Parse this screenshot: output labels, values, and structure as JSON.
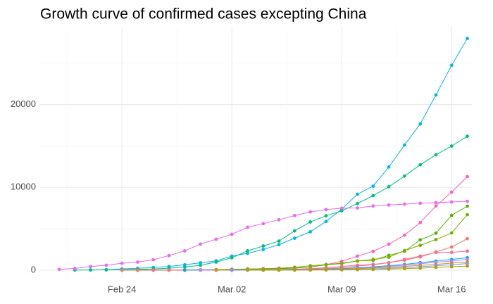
{
  "chart_data": {
    "type": "line",
    "title": "Growth curve of confirmed cases excepting China",
    "categories": [
      null,
      null,
      null,
      null,
      "Feb 24",
      null,
      null,
      null,
      null,
      null,
      null,
      "Mar 02",
      null,
      null,
      null,
      null,
      null,
      null,
      "Mar 09",
      null,
      null,
      null,
      null,
      null,
      null,
      "Mar 16",
      null
    ],
    "ylim": [
      -940,
      29400
    ],
    "yticks": [
      0,
      10000,
      20000
    ],
    "grid": true,
    "series": [
      {
        "color": "#00B8E7",
        "values": [
          null,
          null,
          20,
          62,
          155,
          229,
          322,
          453,
          655,
          888,
          1128,
          1694,
          2036,
          2502,
          3089,
          3858,
          4636,
          5883,
          7375,
          9172,
          10149,
          12462,
          15113,
          17660,
          21157,
          24747,
          27980
        ]
      },
      {
        "color": "#00BF7D",
        "values": [
          null,
          18,
          28,
          43,
          61,
          95,
          139,
          245,
          388,
          593,
          978,
          1501,
          2336,
          2922,
          3513,
          4747,
          5823,
          6566,
          7161,
          8042,
          9000,
          10075,
          11364,
          12729,
          13938,
          14991,
          16169
        ]
      },
      {
        "color": "#E76BF3",
        "values": [
          104,
          204,
          433,
          602,
          833,
          977,
          1261,
          1766,
          2337,
          3150,
          3736,
          4335,
          5186,
          5621,
          6088,
          6593,
          7041,
          7314,
          7478,
          7513,
          7755,
          7869,
          7979,
          8086,
          8162,
          8236,
          8320
        ]
      },
      {
        "color": "#FF62BC",
        "values": [
          null,
          null,
          null,
          null,
          1,
          2,
          6,
          13,
          15,
          32,
          45,
          84,
          120,
          165,
          222,
          259,
          400,
          673,
          1073,
          1695,
          2277,
          3146,
          4231,
          5753,
          7753,
          9428,
          11300
        ]
      },
      {
        "color": "#53B400",
        "values": [
          null,
          null,
          null,
          null,
          null,
          16,
          16,
          18,
          21,
          26,
          53,
          66,
          117,
          150,
          188,
          240,
          400,
          639,
          795,
          1112,
          1189,
          1784,
          2281,
          3661,
          4469,
          6633,
          7730
        ]
      },
      {
        "color": "#7CAE00",
        "values": [
          null,
          null,
          null,
          null,
          16,
          16,
          16,
          18,
          26,
          53,
          66,
          117,
          150,
          188,
          240,
          349,
          534,
          684,
          847,
          1112,
          1296,
          1567,
          2369,
          3000,
          3700,
          4500,
          6700
        ]
      },
      {
        "color": "#F8766D",
        "values": [
          null,
          null,
          null,
          null,
          2,
          3,
          5,
          8,
          10,
          15,
          20,
          30,
          45,
          60,
          80,
          100,
          150,
          200,
          300,
          500,
          650,
          900,
          1200,
          1600,
          2200,
          2800,
          3800
        ]
      },
      {
        "color": "#FF6C91",
        "values": [
          null,
          null,
          null,
          null,
          null,
          null,
          1,
          2,
          5,
          8,
          12,
          20,
          30,
          50,
          80,
          120,
          200,
          300,
          450,
          600,
          700,
          900,
          1300,
          1700,
          2150,
          2150,
          2300
        ]
      },
      {
        "color": "#00A9FF",
        "values": [
          null,
          null,
          null,
          null,
          null,
          null,
          null,
          null,
          4,
          6,
          10,
          15,
          20,
          30,
          45,
          60,
          90,
          130,
          200,
          300,
          400,
          550,
          700,
          900,
          1100,
          1300,
          1500
        ]
      },
      {
        "color": "#C77CFF",
        "values": [
          null,
          null,
          null,
          null,
          null,
          null,
          null,
          null,
          null,
          2,
          4,
          8,
          12,
          18,
          25,
          40,
          60,
          100,
          150,
          230,
          330,
          450,
          600,
          780,
          950,
          1100,
          1300
        ]
      },
      {
        "color": "#CD9600",
        "values": [
          null,
          null,
          null,
          null,
          null,
          null,
          null,
          null,
          null,
          null,
          3,
          6,
          10,
          15,
          25,
          35,
          55,
          80,
          120,
          180,
          260,
          350,
          460,
          580,
          700,
          850,
          1000
        ]
      },
      {
        "color": "#8494FF",
        "values": [
          null,
          null,
          null,
          null,
          null,
          null,
          null,
          null,
          null,
          null,
          null,
          2,
          5,
          9,
          14,
          20,
          30,
          45,
          70,
          110,
          160,
          230,
          320,
          420,
          530,
          650,
          800
        ]
      },
      {
        "color": "#ABA300",
        "values": [
          null,
          null,
          null,
          null,
          null,
          null,
          null,
          null,
          null,
          null,
          null,
          null,
          1,
          3,
          6,
          10,
          15,
          25,
          40,
          60,
          90,
          130,
          180,
          250,
          330,
          420,
          500
        ]
      }
    ]
  }
}
